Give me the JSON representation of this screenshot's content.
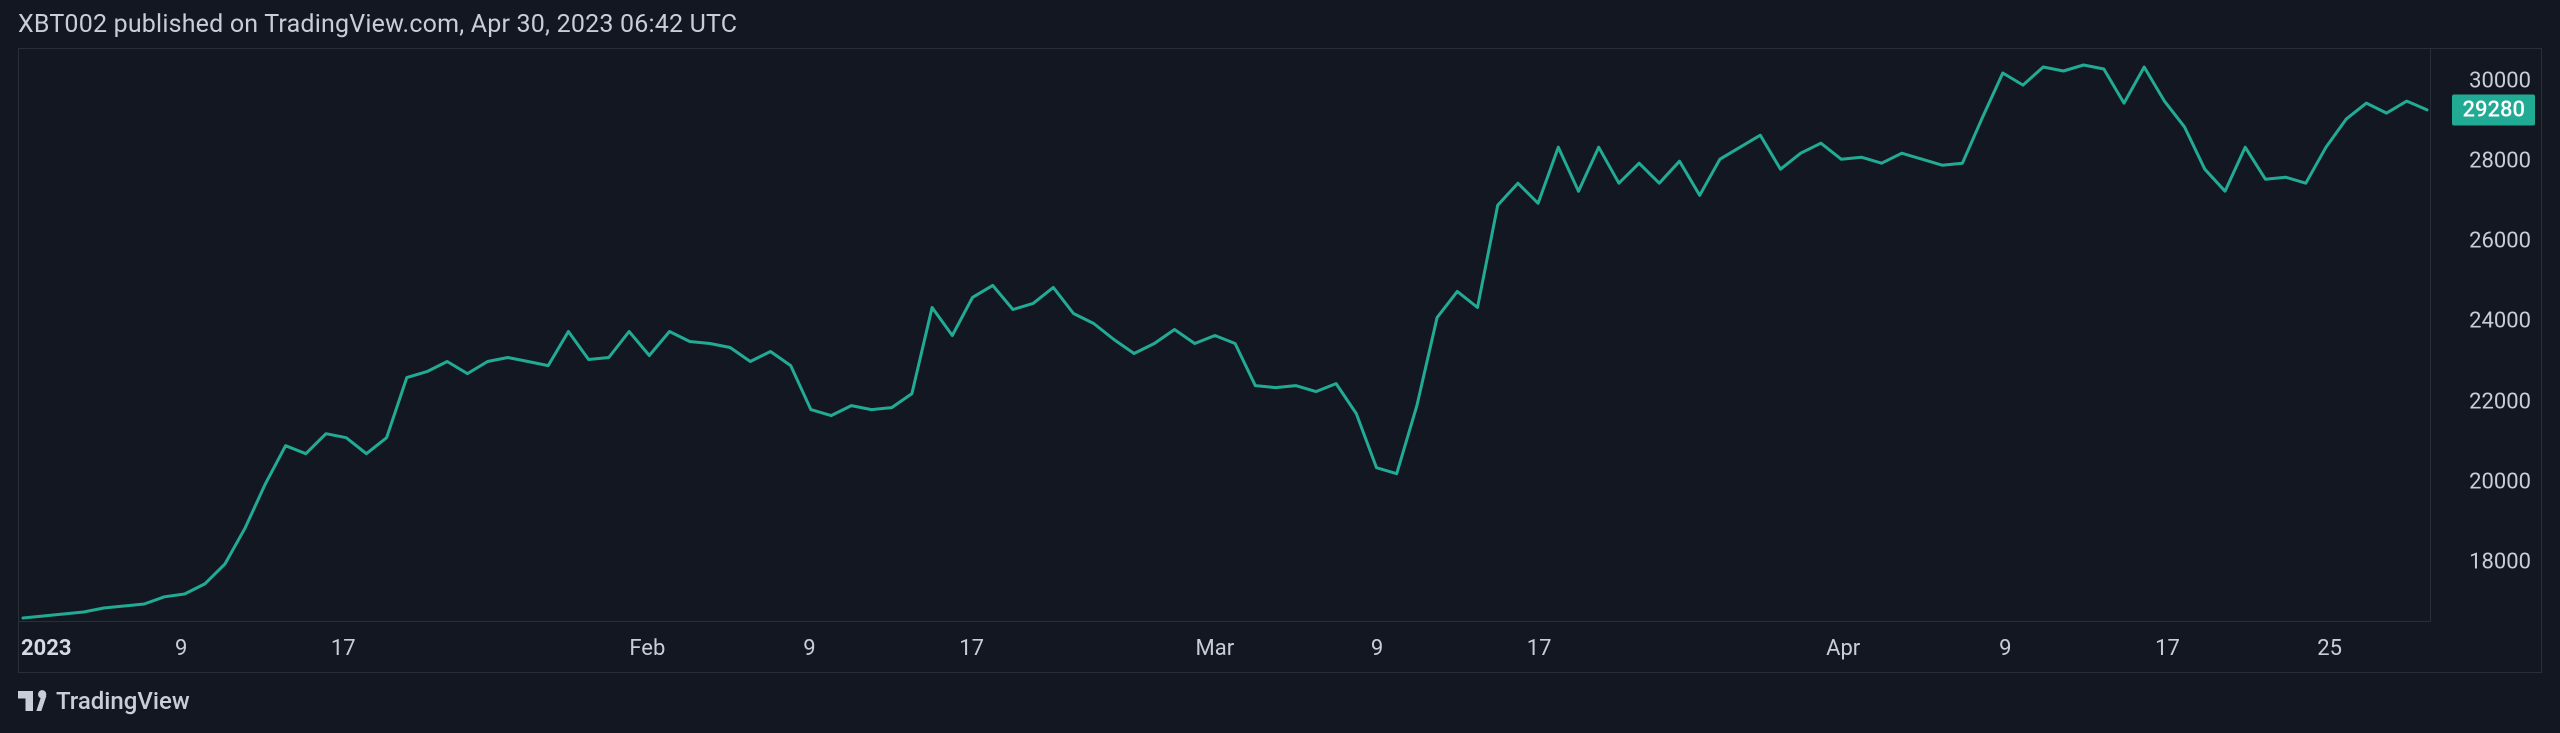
{
  "header": {
    "text": "XBT002 published on TradingView.com, Apr 30, 2023 06:42 UTC"
  },
  "footer": {
    "brand": "TradingView"
  },
  "chart": {
    "type": "line",
    "background_color": "#131722",
    "border_color": "#2a2e39",
    "text_color": "#c8cdd8",
    "line_color": "#22ab94",
    "line_width": 3,
    "label_fontsize": 22,
    "y_axis": {
      "min": 16500,
      "max": 30800,
      "ticks": [
        18000,
        20000,
        22000,
        24000,
        26000,
        28000,
        30000
      ],
      "tick_labels": [
        "18000",
        "20000",
        "22000",
        "24000",
        "26000",
        "28000",
        "30000"
      ]
    },
    "x_axis": {
      "min": 0,
      "max": 119,
      "ticks": [
        {
          "idx": 0,
          "label": "2023",
          "bold": true
        },
        {
          "idx": 8,
          "label": "9"
        },
        {
          "idx": 16,
          "label": "17"
        },
        {
          "idx": 31,
          "label": "Feb"
        },
        {
          "idx": 39,
          "label": "9"
        },
        {
          "idx": 47,
          "label": "17"
        },
        {
          "idx": 59,
          "label": "Mar"
        },
        {
          "idx": 67,
          "label": "9"
        },
        {
          "idx": 75,
          "label": "17"
        },
        {
          "idx": 90,
          "label": "Apr"
        },
        {
          "idx": 98,
          "label": "9"
        },
        {
          "idx": 106,
          "label": "17"
        },
        {
          "idx": 114,
          "label": "25"
        }
      ]
    },
    "current_price": {
      "value": 29280,
      "label": "29280",
      "badge_bg": "#22ab94",
      "badge_fg": "#ffffff"
    },
    "series": [
      {
        "x": 0,
        "y": 16600
      },
      {
        "x": 1,
        "y": 16650
      },
      {
        "x": 2,
        "y": 16700
      },
      {
        "x": 3,
        "y": 16750
      },
      {
        "x": 4,
        "y": 16850
      },
      {
        "x": 5,
        "y": 16900
      },
      {
        "x": 6,
        "y": 16950
      },
      {
        "x": 7,
        "y": 17130
      },
      {
        "x": 8,
        "y": 17200
      },
      {
        "x": 9,
        "y": 17450
      },
      {
        "x": 10,
        "y": 17950
      },
      {
        "x": 11,
        "y": 18850
      },
      {
        "x": 12,
        "y": 19950
      },
      {
        "x": 13,
        "y": 20900
      },
      {
        "x": 14,
        "y": 20700
      },
      {
        "x": 15,
        "y": 21200
      },
      {
        "x": 16,
        "y": 21100
      },
      {
        "x": 17,
        "y": 20700
      },
      {
        "x": 18,
        "y": 21100
      },
      {
        "x": 19,
        "y": 22600
      },
      {
        "x": 20,
        "y": 22750
      },
      {
        "x": 21,
        "y": 23000
      },
      {
        "x": 22,
        "y": 22700
      },
      {
        "x": 23,
        "y": 23000
      },
      {
        "x": 24,
        "y": 23100
      },
      {
        "x": 25,
        "y": 23000
      },
      {
        "x": 26,
        "y": 22900
      },
      {
        "x": 27,
        "y": 23750
      },
      {
        "x": 28,
        "y": 23050
      },
      {
        "x": 29,
        "y": 23100
      },
      {
        "x": 30,
        "y": 23750
      },
      {
        "x": 31,
        "y": 23150
      },
      {
        "x": 32,
        "y": 23750
      },
      {
        "x": 33,
        "y": 23500
      },
      {
        "x": 34,
        "y": 23450
      },
      {
        "x": 35,
        "y": 23350
      },
      {
        "x": 36,
        "y": 23000
      },
      {
        "x": 37,
        "y": 23250
      },
      {
        "x": 38,
        "y": 22900
      },
      {
        "x": 39,
        "y": 21800
      },
      {
        "x": 40,
        "y": 21650
      },
      {
        "x": 41,
        "y": 21900
      },
      {
        "x": 42,
        "y": 21800
      },
      {
        "x": 43,
        "y": 21850
      },
      {
        "x": 44,
        "y": 22200
      },
      {
        "x": 45,
        "y": 24350
      },
      {
        "x": 46,
        "y": 23650
      },
      {
        "x": 47,
        "y": 24600
      },
      {
        "x": 48,
        "y": 24900
      },
      {
        "x": 49,
        "y": 24300
      },
      {
        "x": 50,
        "y": 24450
      },
      {
        "x": 51,
        "y": 24850
      },
      {
        "x": 52,
        "y": 24200
      },
      {
        "x": 53,
        "y": 23950
      },
      {
        "x": 54,
        "y": 23550
      },
      {
        "x": 55,
        "y": 23200
      },
      {
        "x": 56,
        "y": 23450
      },
      {
        "x": 57,
        "y": 23800
      },
      {
        "x": 58,
        "y": 23450
      },
      {
        "x": 59,
        "y": 23650
      },
      {
        "x": 60,
        "y": 23450
      },
      {
        "x": 61,
        "y": 22400
      },
      {
        "x": 62,
        "y": 22350
      },
      {
        "x": 63,
        "y": 22400
      },
      {
        "x": 64,
        "y": 22250
      },
      {
        "x": 65,
        "y": 22450
      },
      {
        "x": 66,
        "y": 21700
      },
      {
        "x": 67,
        "y": 20350
      },
      {
        "x": 68,
        "y": 20200
      },
      {
        "x": 69,
        "y": 21900
      },
      {
        "x": 70,
        "y": 24100
      },
      {
        "x": 71,
        "y": 24750
      },
      {
        "x": 72,
        "y": 24350
      },
      {
        "x": 73,
        "y": 26900
      },
      {
        "x": 74,
        "y": 27450
      },
      {
        "x": 75,
        "y": 26950
      },
      {
        "x": 76,
        "y": 28350
      },
      {
        "x": 77,
        "y": 27250
      },
      {
        "x": 78,
        "y": 28350
      },
      {
        "x": 79,
        "y": 27450
      },
      {
        "x": 80,
        "y": 27950
      },
      {
        "x": 81,
        "y": 27450
      },
      {
        "x": 82,
        "y": 28000
      },
      {
        "x": 83,
        "y": 27150
      },
      {
        "x": 84,
        "y": 28050
      },
      {
        "x": 85,
        "y": 28350
      },
      {
        "x": 86,
        "y": 28650
      },
      {
        "x": 87,
        "y": 27800
      },
      {
        "x": 88,
        "y": 28200
      },
      {
        "x": 89,
        "y": 28450
      },
      {
        "x": 90,
        "y": 28050
      },
      {
        "x": 91,
        "y": 28100
      },
      {
        "x": 92,
        "y": 27950
      },
      {
        "x": 93,
        "y": 28200
      },
      {
        "x": 94,
        "y": 28050
      },
      {
        "x": 95,
        "y": 27900
      },
      {
        "x": 96,
        "y": 27950
      },
      {
        "x": 97,
        "y": 29100
      },
      {
        "x": 98,
        "y": 30200
      },
      {
        "x": 99,
        "y": 29900
      },
      {
        "x": 100,
        "y": 30350
      },
      {
        "x": 101,
        "y": 30250
      },
      {
        "x": 102,
        "y": 30400
      },
      {
        "x": 103,
        "y": 30300
      },
      {
        "x": 104,
        "y": 29450
      },
      {
        "x": 105,
        "y": 30350
      },
      {
        "x": 106,
        "y": 29500
      },
      {
        "x": 107,
        "y": 28850
      },
      {
        "x": 108,
        "y": 27800
      },
      {
        "x": 109,
        "y": 27250
      },
      {
        "x": 110,
        "y": 28350
      },
      {
        "x": 111,
        "y": 27550
      },
      {
        "x": 112,
        "y": 27600
      },
      {
        "x": 113,
        "y": 27450
      },
      {
        "x": 114,
        "y": 28350
      },
      {
        "x": 115,
        "y": 29050
      },
      {
        "x": 116,
        "y": 29450
      },
      {
        "x": 117,
        "y": 29200
      },
      {
        "x": 118,
        "y": 29500
      },
      {
        "x": 119,
        "y": 29280
      }
    ]
  }
}
